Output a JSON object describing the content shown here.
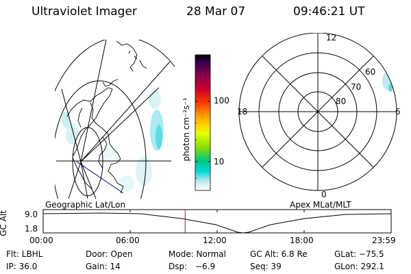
{
  "header": {
    "title": "Ultraviolet Imager",
    "date": "28 Mar 07",
    "time": "09:46:21 UT"
  },
  "colorbar": {
    "unit": "photon cm⁻²s⁻¹",
    "ticks": [
      "100",
      "10"
    ],
    "colors": [
      "#000000",
      "#3a0050",
      "#90004a",
      "#d0002a",
      "#ff4000",
      "#ff9400",
      "#ffd400",
      "#e8ff00",
      "#8ae000",
      "#00c880",
      "#00d8d8",
      "#bce8ec",
      "#ffffff"
    ]
  },
  "geo_map": {
    "caption": "Geographic Lat/Lon"
  },
  "polar_plot": {
    "caption": "Apex MLat/MLT",
    "mlt_labels": {
      "top": "12",
      "left": "18",
      "right": "6",
      "bottom": "0"
    },
    "lat_labels": [
      "60",
      "70",
      "80"
    ]
  },
  "timeline": {
    "axis_label": "GC Alt",
    "y_ticks": [
      "9.0",
      "1.8"
    ],
    "x_ticks": [
      "00:00",
      "06:00",
      "12:00",
      "18:00",
      "23:59"
    ],
    "current_time_fraction": 0.408
  },
  "info": {
    "flt": "Flt: LBHL",
    "door": "Door: Open",
    "mode": "Mode: Normal",
    "gc_alt": "GC Alt: 6.8 Re",
    "glat": "GLat: −75.5",
    "ip": "IP: 36.0",
    "gain": "Gain: 14",
    "dsp_label": "Dsp:",
    "dsp_value": "−6.9",
    "seq": "Seq: 39",
    "glon": "GLon: 292.1"
  }
}
